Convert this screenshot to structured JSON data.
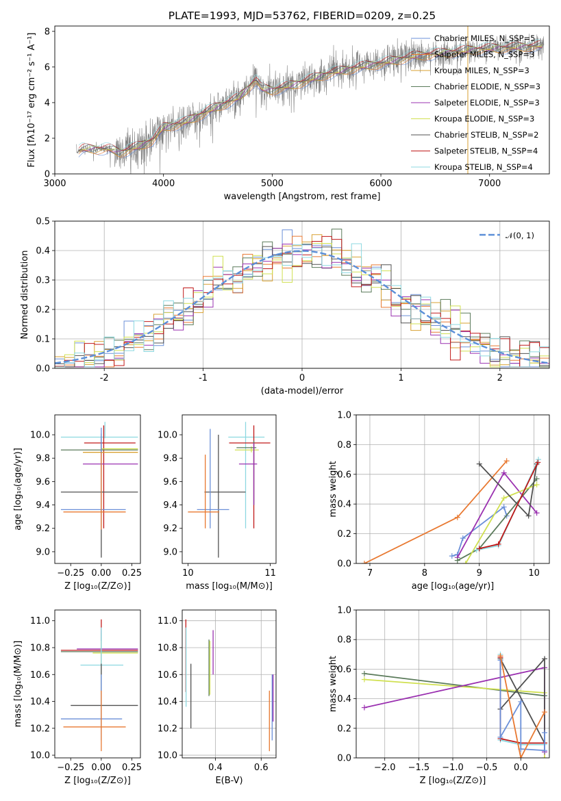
{
  "colors": {
    "chabrier_miles": "#6a8fd8",
    "salpeter_miles": "#e87830",
    "kroupa_miles": "#d8a030",
    "chabrier_elodie": "#5a7a5a",
    "salpeter_elodie": "#9a30b0",
    "kroupa_elodie": "#d0e050",
    "chabrier_stelib": "#505050",
    "salpeter_stelib": "#c01818",
    "kroupa_stelib": "#8cd8e0",
    "grid": "#b0b0b0",
    "data_spectrum": "#808080",
    "normal_curve": "#5b8fd8"
  },
  "chart_data": [
    {
      "id": "spectrum",
      "type": "line",
      "title": "PLATE=1993, MJD=53762, FIBERID=0209, z=0.25",
      "xlabel": "wavelength [Angstrom, rest frame]",
      "ylabel": "Flux [fλ10⁻¹⁷ erg cm⁻² s⁻¹ A⁻¹]",
      "xlim": [
        3000,
        7550
      ],
      "ylim": [
        0,
        8.3
      ],
      "xticks": [
        3000,
        4000,
        5000,
        6000,
        7000
      ],
      "yticks": [
        0,
        2,
        4,
        6,
        8
      ],
      "grid": false,
      "legend": "top-right",
      "spectrum_range": [
        3200,
        7500
      ],
      "continuum": {
        "x": [
          3200,
          3250,
          3500,
          3600,
          3800,
          3900,
          4000,
          4200,
          4400,
          4700,
          4850,
          4900,
          5000,
          5200,
          5500,
          5800,
          6000,
          6300,
          6600,
          6900,
          7200,
          7500
        ],
        "y": [
          1.2,
          1.4,
          1.4,
          1.2,
          1.6,
          1.9,
          2.6,
          2.9,
          3.5,
          4.3,
          5.3,
          4.8,
          4.7,
          5.0,
          5.6,
          6.0,
          6.2,
          6.6,
          6.8,
          7.0,
          7.1,
          7.2
        ]
      },
      "series": [
        {
          "name": "Chabrier MILES, N_SSP=5",
          "key": "chabrier_miles"
        },
        {
          "name": "Salpeter MILES, N_SSP=3",
          "key": "salpeter_miles"
        },
        {
          "name": "Kroupa MILES, N_SSP=3",
          "key": "kroupa_miles"
        },
        {
          "name": "Chabrier ELODIE, N_SSP=3",
          "key": "chabrier_elodie"
        },
        {
          "name": "Salpeter ELODIE, N_SSP=3",
          "key": "salpeter_elodie"
        },
        {
          "name": "Kroupa ELODIE, N_SSP=3",
          "key": "kroupa_elodie"
        },
        {
          "name": "Chabrier STELIB, N_SSP=2",
          "key": "chabrier_stelib"
        },
        {
          "name": "Salpeter STELIB, N_SSP=4",
          "key": "salpeter_stelib"
        },
        {
          "name": "Kroupa STELIB, N_SSP=4",
          "key": "kroupa_stelib"
        }
      ]
    },
    {
      "id": "residuals",
      "type": "line",
      "title": "",
      "xlabel": "(data-model)/error",
      "ylabel": "Normed distribution",
      "xlim": [
        -2.5,
        2.5
      ],
      "ylim": [
        0,
        0.5
      ],
      "xticks": [
        -2,
        -1,
        0,
        1,
        2
      ],
      "yticks": [
        0.0,
        0.1,
        0.2,
        0.3,
        0.4,
        0.5
      ],
      "grid": true,
      "legend": "top-right",
      "reference": {
        "name": "𝒩(0, 1)",
        "mean": 0,
        "sigma": 1
      },
      "bin_width": 0.1
    },
    {
      "id": "z_age",
      "type": "scatter",
      "xlabel": "Z [log₁₀(Z/Z⊙)]",
      "ylabel": "age  [log₁₀(age/yr)]",
      "xlim": [
        -0.38,
        0.32
      ],
      "ylim": [
        8.9,
        10.17
      ],
      "xticks": [
        -0.25,
        0.0,
        0.25
      ],
      "xtick_labels": [
        "−0.25",
        "0.00",
        "0.25"
      ],
      "yticks": [
        9.0,
        9.2,
        9.4,
        9.6,
        9.8,
        10.0
      ],
      "grid": false,
      "crosses": [
        {
          "key": "kroupa_stelib",
          "x": 0.03,
          "xe": [
            -0.33,
            0.3
          ],
          "y": 9.98,
          "ye": [
            9.97,
            10.11
          ]
        },
        {
          "key": "salpeter_stelib",
          "x": 0.02,
          "xe": [
            -0.14,
            0.28
          ],
          "y": 9.93,
          "ye": [
            9.2,
            10.08
          ]
        },
        {
          "key": "chabrier_elodie",
          "x": 0.0,
          "xe": [
            -0.33,
            0.3
          ],
          "y": 9.87,
          "ye": [
            9.43,
            9.97
          ]
        },
        {
          "key": "kroupa_elodie",
          "x": 0.0,
          "xe": [
            0.0,
            0.3
          ],
          "y": 9.88,
          "ye": [
            9.85,
            9.9
          ]
        },
        {
          "key": "kroupa_miles",
          "x": 0.0,
          "xe": [
            -0.15,
            0.3
          ],
          "y": 9.85,
          "ye": [
            9.2,
            9.86
          ]
        },
        {
          "key": "salpeter_elodie",
          "x": 0.0,
          "xe": [
            -0.15,
            0.3
          ],
          "y": 9.75,
          "ye": [
            9.4,
            9.93
          ]
        },
        {
          "key": "chabrier_stelib",
          "x": 0.0,
          "xe": [
            -0.33,
            0.3
          ],
          "y": 9.51,
          "ye": [
            8.95,
            10.01
          ]
        },
        {
          "key": "chabrier_miles",
          "x": 0.0,
          "xe": [
            -0.33,
            0.2
          ],
          "y": 9.36,
          "ye": [
            9.19,
            10.06
          ]
        },
        {
          "key": "salpeter_miles",
          "x": 0.0,
          "xe": [
            -0.31,
            0.2
          ],
          "y": 9.34,
          "ye": [
            9.19,
            9.85
          ]
        }
      ]
    },
    {
      "id": "mass_age",
      "type": "scatter",
      "xlabel": "mass [log₁₀(M/M⊙)]",
      "ylabel": "",
      "xlim": [
        9.93,
        11.07
      ],
      "ylim": [
        8.9,
        10.17
      ],
      "xticks": [
        10,
        11
      ],
      "yticks": [
        9.0,
        9.2,
        9.4,
        9.6,
        9.8,
        10.0
      ],
      "grid": false,
      "crosses": [
        {
          "key": "kroupa_stelib",
          "x": 10.7,
          "xe": [
            10.49,
            10.93
          ],
          "y": 9.98,
          "ye": [
            9.2,
            10.11
          ]
        },
        {
          "key": "salpeter_stelib",
          "x": 10.8,
          "xe": [
            10.5,
            11.0
          ],
          "y": 9.93,
          "ye": [
            9.2,
            10.08
          ]
        },
        {
          "key": "kroupa_elodie",
          "x": 10.77,
          "xe": [
            10.57,
            10.86
          ],
          "y": 9.87,
          "ye": [
            9.85,
            9.9
          ]
        },
        {
          "key": "chabrier_elodie",
          "x": 10.8,
          "xe": [
            10.59,
            10.83
          ],
          "y": 9.89,
          "ye": [
            9.4,
            9.95
          ]
        },
        {
          "key": "salpeter_elodie",
          "x": 10.8,
          "xe": [
            10.62,
            10.84
          ],
          "y": 9.75,
          "ye": [
            9.4,
            9.93
          ]
        },
        {
          "key": "chabrier_stelib",
          "x": 10.37,
          "xe": [
            10.2,
            10.7
          ],
          "y": 9.51,
          "ye": [
            8.95,
            10.0
          ]
        },
        {
          "key": "chabrier_miles",
          "x": 10.27,
          "xe": [
            10.11,
            10.5
          ],
          "y": 9.36,
          "ye": [
            9.2,
            10.05
          ]
        },
        {
          "key": "salpeter_miles",
          "x": 10.21,
          "xe": [
            10.0,
            10.38
          ],
          "y": 9.34,
          "ye": [
            9.2,
            9.83
          ]
        }
      ]
    },
    {
      "id": "age_weight",
      "type": "line",
      "xlabel": "age  [log₁₀(age/yr)]",
      "ylabel": "mass weight",
      "xlim": [
        6.75,
        10.28
      ],
      "ylim": [
        0,
        1.0
      ],
      "xticks": [
        7,
        8,
        9,
        10
      ],
      "yticks": [
        0.0,
        0.2,
        0.4,
        0.6,
        0.8,
        1.0
      ],
      "grid": true,
      "series": [
        {
          "key": "salpeter_miles",
          "x": [
            6.9,
            8.6,
            9.5
          ],
          "y": [
            0.0,
            0.31,
            0.69
          ]
        },
        {
          "key": "chabrier_miles",
          "x": [
            8.5,
            8.6,
            8.7,
            9.45,
            9.5
          ],
          "y": [
            0.05,
            0.06,
            0.17,
            0.38,
            0.32
          ]
        },
        {
          "key": "salpeter_elodie",
          "x": [
            8.6,
            9.45,
            10.05
          ],
          "y": [
            0.04,
            0.61,
            0.34
          ]
        },
        {
          "key": "chabrier_elodie",
          "x": [
            8.6,
            9.0,
            10.05
          ],
          "y": [
            0.02,
            0.1,
            0.57
          ]
        },
        {
          "key": "kroupa_elodie",
          "x": [
            8.75,
            9.45,
            10.05
          ],
          "y": [
            0.0,
            0.44,
            0.53
          ]
        },
        {
          "key": "chabrier_stelib",
          "x": [
            9.0,
            9.9,
            10.05
          ],
          "y": [
            0.67,
            0.32,
            0.67
          ]
        },
        {
          "key": "kroupa_stelib",
          "x": [
            8.95,
            9.35,
            10.08
          ],
          "y": [
            0.09,
            0.12,
            0.7
          ]
        },
        {
          "key": "salpeter_stelib",
          "x": [
            9.0,
            9.35,
            10.07
          ],
          "y": [
            0.1,
            0.13,
            0.68
          ]
        }
      ]
    },
    {
      "id": "z_mass",
      "type": "scatter",
      "xlabel": "Z [log₁₀(Z/Z⊙)]",
      "ylabel": "mass [log₁₀(M/M⊙)]",
      "xlim": [
        -0.38,
        0.32
      ],
      "ylim": [
        9.98,
        11.08
      ],
      "xticks": [
        -0.25,
        0.0,
        0.25
      ],
      "xtick_labels": [
        "−0.25",
        "0.00",
        "0.25"
      ],
      "yticks": [
        10.0,
        10.2,
        10.4,
        10.6,
        10.8,
        11.0
      ],
      "grid": false,
      "crosses": [
        {
          "key": "salpeter_stelib",
          "x": 0.0,
          "xe": [
            -0.33,
            0.3
          ],
          "y": 10.78,
          "ye": [
            10.47,
            11.01
          ]
        },
        {
          "key": "salpeter_elodie",
          "x": 0.0,
          "xe": [
            -0.2,
            0.3
          ],
          "y": 10.79,
          "ye": [
            10.48,
            10.93
          ]
        },
        {
          "key": "chabrier_elodie",
          "x": 0.0,
          "xe": [
            -0.33,
            0.3
          ],
          "y": 10.77,
          "ye": [
            10.46,
            10.91
          ]
        },
        {
          "key": "kroupa_elodie",
          "x": 0.0,
          "xe": [
            -0.07,
            0.3
          ],
          "y": 10.76,
          "ye": [
            10.45,
            10.85
          ]
        },
        {
          "key": "kroupa_stelib",
          "x": 0.0,
          "xe": [
            -0.17,
            0.18
          ],
          "y": 10.67,
          "ye": [
            10.36,
            10.95
          ]
        },
        {
          "key": "chabrier_stelib",
          "x": 0.0,
          "xe": [
            -0.25,
            0.3
          ],
          "y": 10.37,
          "ye": [
            10.2,
            10.68
          ]
        },
        {
          "key": "chabrier_miles",
          "x": 0.0,
          "xe": [
            -0.33,
            0.17
          ],
          "y": 10.27,
          "ye": [
            10.11,
            10.6
          ]
        },
        {
          "key": "salpeter_miles",
          "x": 0.0,
          "xe": [
            -0.31,
            0.2
          ],
          "y": 10.21,
          "ye": [
            10.03,
            10.48
          ]
        }
      ]
    },
    {
      "id": "ebv_mass",
      "type": "scatter",
      "xlabel": "E(B-V)",
      "ylabel": "",
      "xlim": [
        0.255,
        0.665
      ],
      "ylim": [
        9.98,
        11.08
      ],
      "xticks": [
        0.4,
        0.6
      ],
      "yticks": [
        10.0,
        10.2,
        10.4,
        10.6,
        10.8,
        11.0
      ],
      "grid": true,
      "crosses": [
        {
          "key": "salpeter_stelib",
          "x": 0.271,
          "ye": [
            10.47,
            11.01
          ]
        },
        {
          "key": "kroupa_stelib",
          "x": 0.272,
          "ye": [
            10.36,
            10.95
          ]
        },
        {
          "key": "chabrier_stelib",
          "x": 0.293,
          "ye": [
            10.2,
            10.68
          ]
        },
        {
          "key": "chabrier_elodie",
          "x": 0.372,
          "ye": [
            10.44,
            10.86
          ]
        },
        {
          "key": "kroupa_elodie",
          "x": 0.376,
          "ye": [
            10.45,
            10.85
          ]
        },
        {
          "key": "salpeter_elodie",
          "x": 0.39,
          "ye": [
            10.6,
            10.93
          ]
        },
        {
          "key": "salpeter_miles",
          "x": 0.636,
          "ye": [
            10.03,
            10.48
          ]
        },
        {
          "key": "chabrier_miles",
          "x": 0.648,
          "ye": [
            10.11,
            10.6
          ]
        },
        {
          "key": "salpeter_elodie",
          "x": 0.652,
          "ye": [
            10.25,
            10.6
          ]
        }
      ]
    },
    {
      "id": "z_weight",
      "type": "line",
      "xlabel": "Z [log₁₀(Z/Z⊙)]",
      "ylabel": "mass weight",
      "xlim": [
        -2.42,
        0.42
      ],
      "ylim": [
        0,
        1.0
      ],
      "xticks": [
        -2.0,
        -1.5,
        -1.0,
        -0.5,
        0.0
      ],
      "xtick_labels": [
        "−2.0",
        "−1.5",
        "−1.0",
        "−0.5",
        "0.0"
      ],
      "yticks": [
        0.0,
        0.2,
        0.4,
        0.6,
        0.8,
        1.0
      ],
      "grid": true,
      "series": [
        {
          "key": "chabrier_elodie",
          "x": [
            -2.3,
            0.35
          ],
          "y": [
            0.57,
            0.42
          ]
        },
        {
          "key": "kroupa_elodie",
          "x": [
            -2.3,
            0.35,
            0.35
          ],
          "y": [
            0.53,
            0.44,
            0.0
          ]
        },
        {
          "key": "salpeter_elodie",
          "x": [
            -2.3,
            0.35,
            0.35
          ],
          "y": [
            0.34,
            0.61,
            0.04
          ]
        },
        {
          "key": "chabrier_stelib",
          "x": [
            -0.3,
            0.35,
            0.35,
            -0.3
          ],
          "y": [
            0.33,
            0.67,
            0.1,
            0.67
          ]
        },
        {
          "key": "kroupa_stelib",
          "x": [
            -0.3,
            -0.3,
            0.0,
            0.35
          ],
          "y": [
            0.7,
            0.12,
            0.09,
            0.09
          ]
        },
        {
          "key": "salpeter_stelib",
          "x": [
            -0.3,
            -0.3,
            0.0,
            0.35
          ],
          "y": [
            0.68,
            0.13,
            0.1,
            0.1
          ]
        },
        {
          "key": "chabrier_miles",
          "x": [
            -0.3,
            -0.3,
            0.0,
            0.0,
            0.35,
            0.35
          ],
          "y": [
            0.66,
            0.14,
            0.38,
            0.06,
            0.05,
            0.17
          ]
        },
        {
          "key": "salpeter_miles",
          "x": [
            -0.3,
            0.0,
            0.35
          ],
          "y": [
            0.69,
            0.0,
            0.31
          ]
        }
      ]
    }
  ]
}
